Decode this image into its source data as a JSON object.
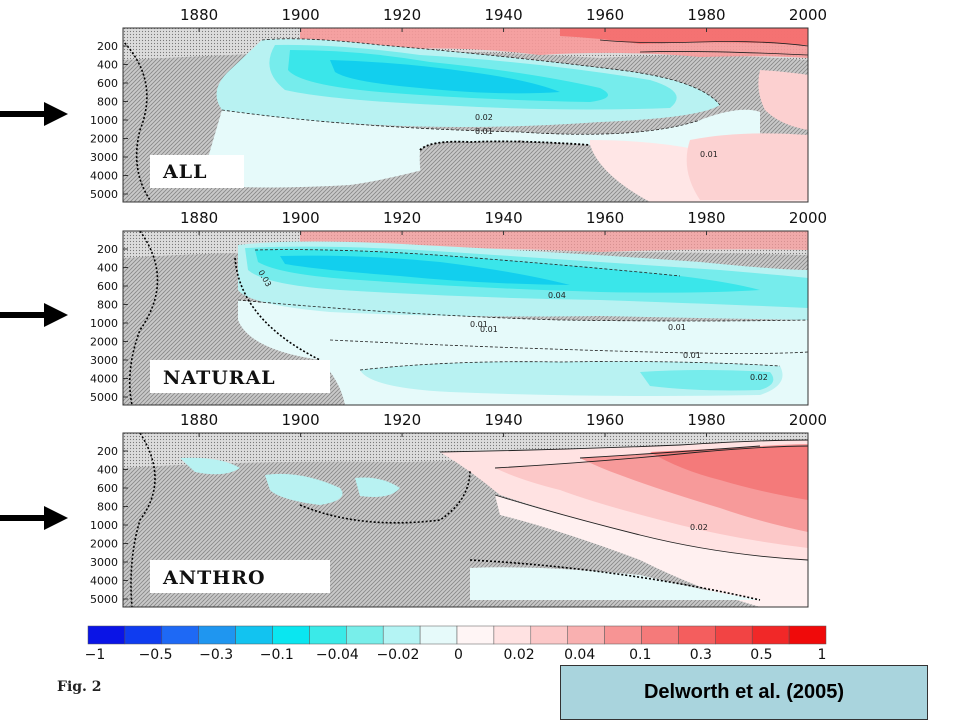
{
  "chart_data": {
    "type": "heatmap",
    "x_ticks": [
      "1880",
      "1900",
      "1920",
      "1940",
      "1960",
      "1980",
      "2000"
    ],
    "x_range": [
      1865,
      2000
    ],
    "depth_ticks": [
      "200",
      "400",
      "600",
      "800",
      "1000",
      "2000",
      "3000",
      "4000",
      "5000"
    ],
    "colorbar": {
      "labels": [
        "−1",
        "−0.5",
        "−0.3",
        "−0.1",
        "−0.04",
        "−0.02",
        "0",
        "0.02",
        "0.04",
        "0.1",
        "0.3",
        "0.5",
        "1"
      ],
      "colors": [
        "#0a14e6",
        "#0f3cf0",
        "#1e69f5",
        "#1f96f0",
        "#12c3f0",
        "#0ae6f0",
        "#3aeae8",
        "#78eeea",
        "#b4f4f4",
        "#e6fafa",
        "#fff5f5",
        "#ffe2e2",
        "#fcc8c8",
        "#f9b0b0",
        "#f79494",
        "#f57a7a",
        "#f45e5e",
        "#f24444",
        "#f12828",
        "#f00a0a"
      ]
    },
    "panels": [
      {
        "label": "ALL",
        "contour_labels": [
          "0.02",
          "0.01",
          "0.01"
        ],
        "value_summary": "Negative anomalies (-0.01 to -0.1) in upper 1000 m from 1885 to 1960; warming near surface after 1960; positive (0.01) at depth after 1970"
      },
      {
        "label": "NATURAL",
        "contour_labels": [
          "0.03",
          "0.04",
          "0.01",
          "0.01",
          "0.01",
          "0.01",
          "0.02"
        ],
        "value_summary": "Negative anomalies throughout most of the record; strongest (-0.04 to -0.1) in 200-800 m from 1890 to 1960; deep negative (-0.01 to -0.02) below 3000 m"
      },
      {
        "label": "ANTHRO",
        "contour_labels": [
          "0.02"
        ],
        "value_summary": "Near-zero until 1940; positive anomalies increasing to 0.1-0.5 in upper 1000 m after 1960"
      }
    ]
  },
  "arrows": [
    "arrow-1000m-all",
    "arrow-1000m-natural",
    "arrow-1000m-anthro"
  ],
  "figure_label": "Fig. 2",
  "citation": "Delworth et al. (2005)"
}
